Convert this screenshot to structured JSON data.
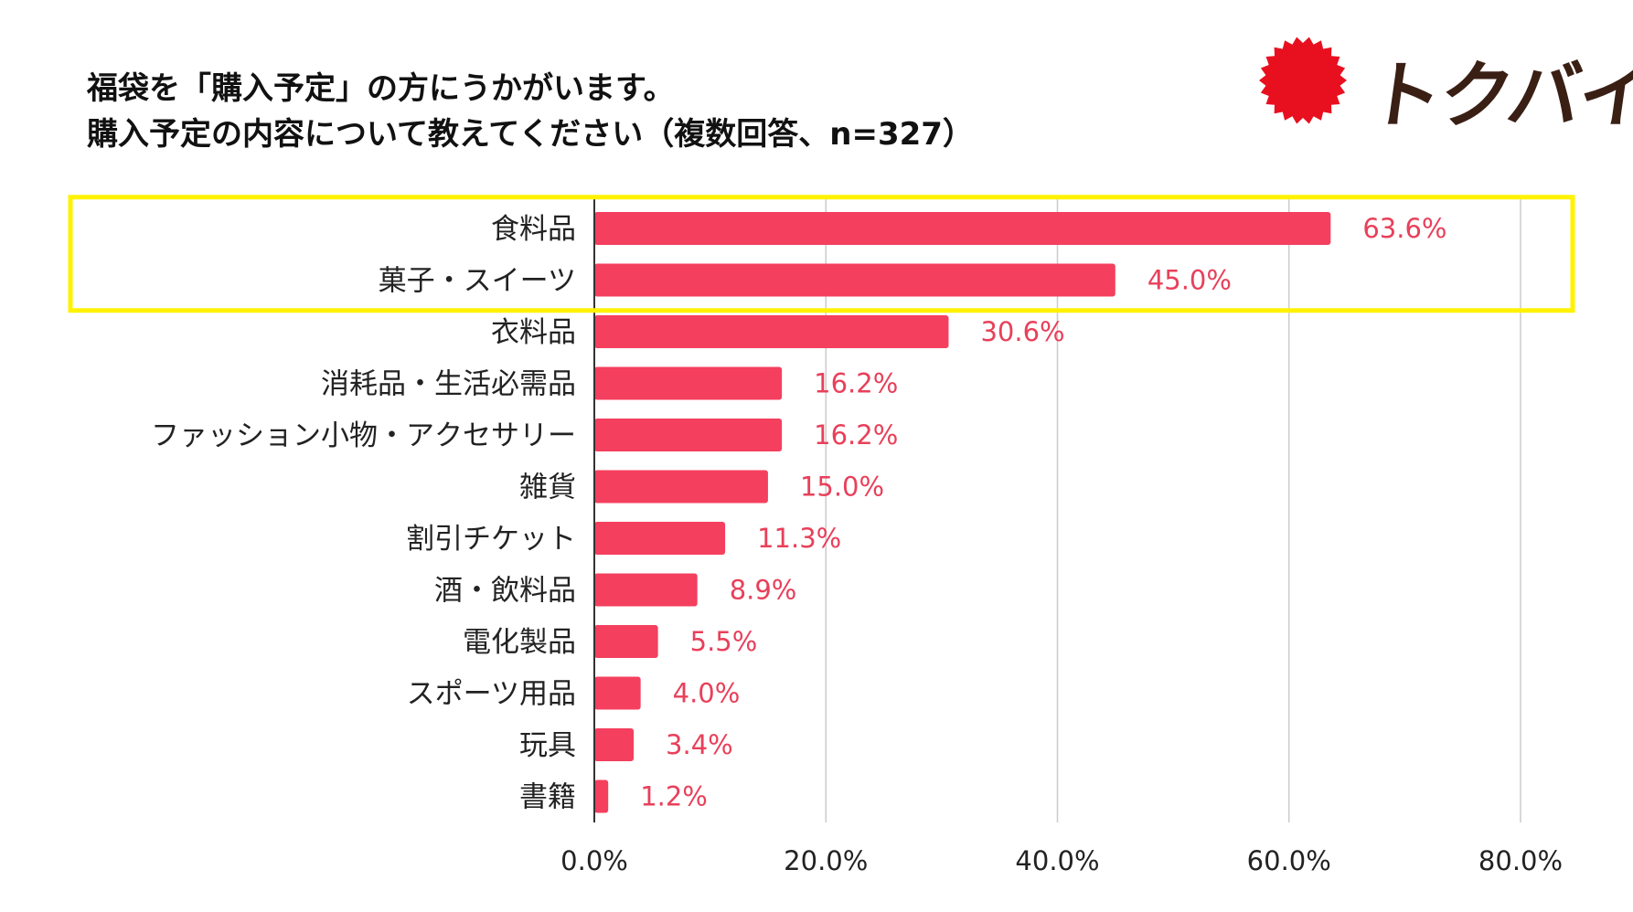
{
  "brand": {
    "name": "トクバイ",
    "logo_color": "#e8101f",
    "text_color": "#3a1f14"
  },
  "title": {
    "line1": "福袋を「購入予定」の方にうかがいます。",
    "line2": "購入予定の内容について教えてください（複数回答、n=327）"
  },
  "chart_data": {
    "type": "bar",
    "orientation": "horizontal",
    "title": "福袋を「購入予定」の方にうかがいます。 購入予定の内容について教えてください（複数回答、n=327）",
    "categories": [
      "食料品",
      "菓子・スイーツ",
      "衣料品",
      "消耗品・生活必需品",
      "ファッション小物・アクセサリー",
      "雑貨",
      "割引チケット",
      "酒・飲料品",
      "電化製品",
      "スポーツ用品",
      "玩具",
      "書籍"
    ],
    "values": [
      63.6,
      45.0,
      30.6,
      16.2,
      16.2,
      15.0,
      11.3,
      8.9,
      5.5,
      4.0,
      3.4,
      1.2
    ],
    "value_labels": [
      "63.6%",
      "45.0%",
      "30.6%",
      "16.2%",
      "16.2%",
      "15.0%",
      "11.3%",
      "8.9%",
      "5.5%",
      "4.0%",
      "3.4%",
      "1.2%"
    ],
    "xlim": [
      0,
      80
    ],
    "xticks": [
      0,
      20,
      40,
      60,
      80
    ],
    "xtick_labels": [
      "0.0%",
      "20.0%",
      "40.0%",
      "60.0%",
      "80.0%"
    ],
    "grid": true,
    "highlight_categories": [
      "食料品",
      "菓子・スイーツ"
    ],
    "bar_color": "#f43f5e",
    "label_color": "#e8405a",
    "highlight_color": "#fff200",
    "xlabel": "",
    "ylabel": ""
  }
}
